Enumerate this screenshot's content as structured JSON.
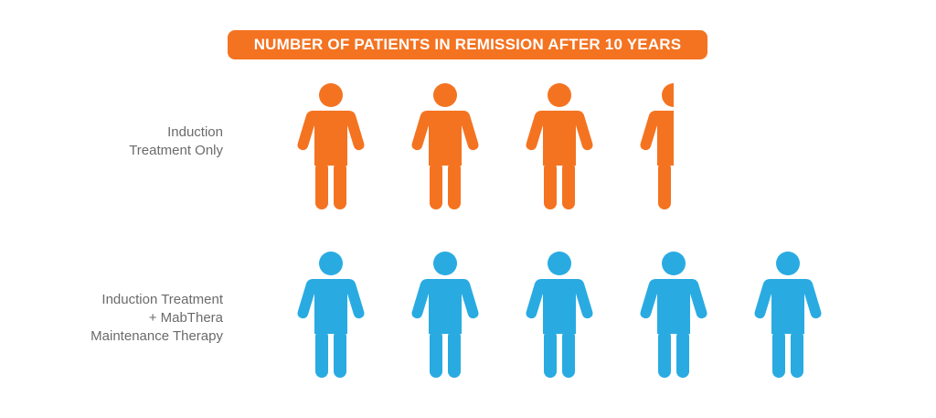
{
  "chart_data": {
    "type": "pictogram",
    "title": "NUMBER OF PATIENTS IN REMISSION AFTER 10 YEARS",
    "categories": [
      [
        "Induction",
        "Treatment Only"
      ],
      [
        "Induction Treatment",
        "+ MabThera",
        "Maintenance Therapy"
      ]
    ],
    "values": [
      3.5,
      5
    ],
    "colors": [
      "#f47321",
      "#29abe2"
    ]
  },
  "colors": {
    "title_background": "#f47321"
  }
}
